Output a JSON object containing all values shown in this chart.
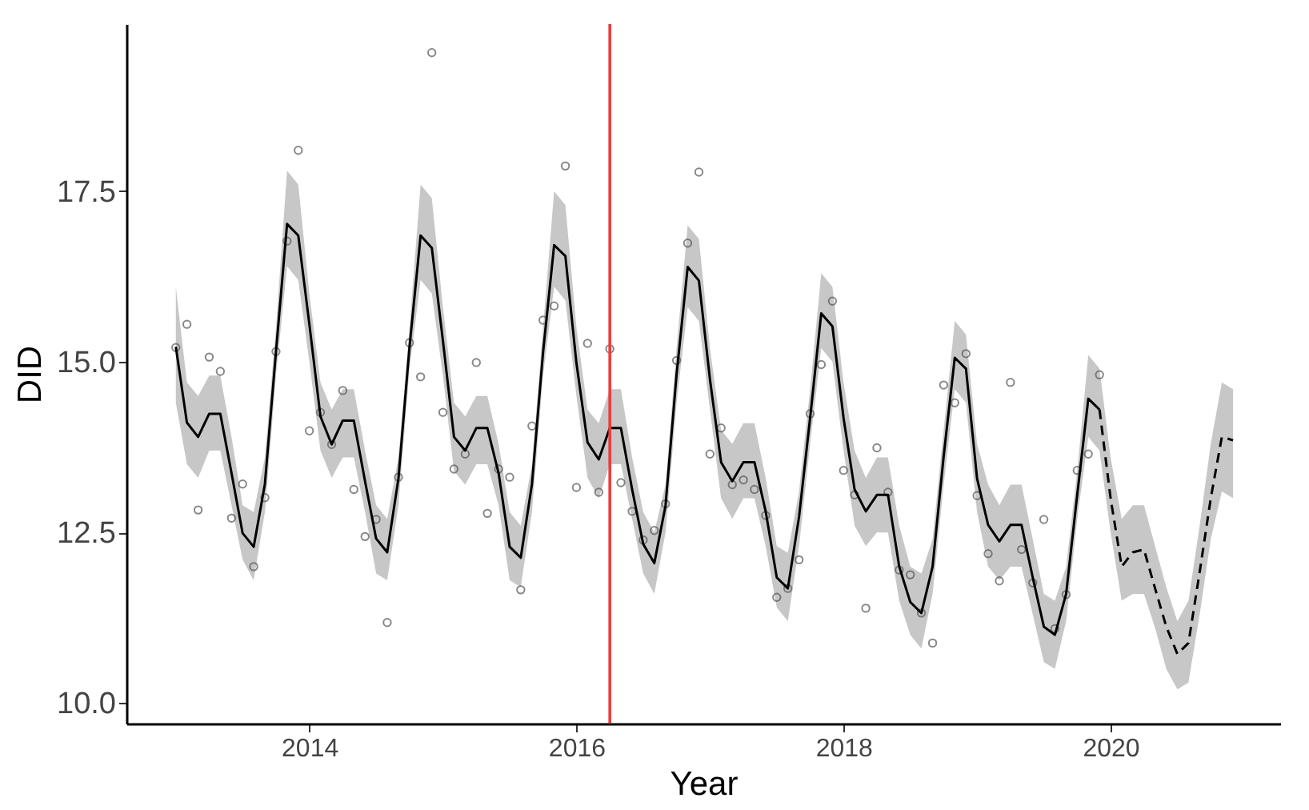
{
  "chart_data": {
    "type": "line",
    "xlabel": "Year",
    "ylabel": "DID",
    "xlim": [
      2012.63,
      2021.27
    ],
    "xticks": [
      2014,
      2016,
      2018,
      2020
    ],
    "ylim": [
      9.7,
      19.95
    ],
    "yticks": [
      {
        "value": 10,
        "label": "10.0"
      },
      {
        "value": 12.5,
        "label": "12.5"
      },
      {
        "value": 15,
        "label": "15.0"
      },
      {
        "value": 17.5,
        "label": "17.5"
      }
    ],
    "grid": false,
    "x": [
      2013,
      2013.083,
      2013.167,
      2013.25,
      2013.333,
      2013.417,
      2013.5,
      2013.583,
      2013.667,
      2013.75,
      2013.833,
      2013.917,
      2014,
      2014.083,
      2014.167,
      2014.25,
      2014.333,
      2014.417,
      2014.5,
      2014.583,
      2014.667,
      2014.75,
      2014.833,
      2014.917,
      2015,
      2015.083,
      2015.167,
      2015.25,
      2015.333,
      2015.417,
      2015.5,
      2015.583,
      2015.667,
      2015.75,
      2015.833,
      2015.917,
      2016,
      2016.083,
      2016.167,
      2016.25,
      2016.333,
      2016.417,
      2016.5,
      2016.583,
      2016.667,
      2016.75,
      2016.833,
      2016.917,
      2017,
      2017.083,
      2017.167,
      2017.25,
      2017.333,
      2017.417,
      2017.5,
      2017.583,
      2017.667,
      2017.75,
      2017.833,
      2017.917,
      2018,
      2018.083,
      2018.167,
      2018.25,
      2018.333,
      2018.417,
      2018.5,
      2018.583,
      2018.667,
      2018.75,
      2018.833,
      2018.917,
      2019,
      2019.083,
      2019.167,
      2019.25,
      2019.333,
      2019.417,
      2019.5,
      2019.583,
      2019.667,
      2019.75,
      2019.833,
      2019.917
    ],
    "series": [
      {
        "type": "scatter",
        "color": "#555555",
        "marker": "circle",
        "values": [
          15.21,
          15.55,
          12.83,
          15.07,
          14.86,
          12.71,
          13.21,
          12.0,
          13.01,
          15.15,
          16.77,
          18.1,
          13.99,
          14.26,
          13.79,
          14.58,
          13.13,
          12.44,
          12.69,
          11.18,
          13.31,
          15.28,
          14.78,
          19.53,
          14.26,
          13.43,
          13.65,
          14.99,
          12.78,
          13.43,
          13.31,
          11.66,
          14.06,
          15.61,
          15.82,
          17.87,
          13.16,
          15.27,
          13.09,
          15.19,
          13.23,
          12.81,
          12.39,
          12.53,
          12.92,
          15.02,
          16.74,
          17.78,
          13.65,
          14.03,
          13.2,
          13.27,
          13.13,
          12.75,
          11.55,
          11.68,
          12.1,
          14.24,
          14.96,
          15.89,
          13.41,
          13.05,
          11.39,
          13.74,
          13.09,
          11.95,
          11.88,
          11.32,
          10.88,
          14.66,
          14.4,
          15.12,
          13.04,
          12.19,
          11.79,
          14.7,
          12.25,
          11.76,
          12.69,
          11.09,
          11.59,
          13.41,
          13.65,
          14.81
        ]
      },
      {
        "color": "#000000",
        "line_style": "solid",
        "marker": "none",
        "values": [
          15.22,
          14.11,
          13.9,
          14.24,
          14.24,
          13.37,
          12.49,
          12.29,
          13.21,
          15.15,
          17.02,
          16.85,
          15.55,
          14.2,
          13.79,
          14.14,
          14.14,
          13.25,
          12.41,
          12.21,
          13.29,
          15.22,
          16.85,
          16.67,
          15.31,
          13.9,
          13.7,
          14.03,
          14.03,
          13.37,
          12.29,
          12.13,
          13.21,
          15.14,
          16.71,
          16.55,
          14.98,
          13.82,
          13.57,
          14.03,
          14.03,
          13.13,
          12.33,
          12.05,
          12.89,
          14.82,
          16.39,
          16.19,
          14.74,
          13.53,
          13.25,
          13.53,
          13.53,
          12.81,
          11.84,
          11.68,
          12.73,
          14.18,
          15.71,
          15.52,
          14.18,
          13.13,
          12.81,
          13.05,
          13.05,
          12.0,
          11.48,
          11.32,
          12.0,
          13.62,
          15.06,
          14.9,
          13.29,
          12.61,
          12.37,
          12.61,
          12.61,
          11.84,
          11.12,
          11.0,
          11.6,
          13.05,
          14.46,
          14.3
        ],
        "upper": [
          16.1,
          14.7,
          14.5,
          14.8,
          14.8,
          13.9,
          12.9,
          12.8,
          13.6,
          15.5,
          17.8,
          17.6,
          16.0,
          14.7,
          14.3,
          14.6,
          14.6,
          13.7,
          12.9,
          12.7,
          13.6,
          15.5,
          17.6,
          17.4,
          15.8,
          14.4,
          14.2,
          14.5,
          14.5,
          13.8,
          12.8,
          12.6,
          13.5,
          15.5,
          17.5,
          17.3,
          15.5,
          14.3,
          14.1,
          14.6,
          14.6,
          13.6,
          12.8,
          12.5,
          13.2,
          15.2,
          17.0,
          16.8,
          15.2,
          14.0,
          13.8,
          14.1,
          14.1,
          13.3,
          12.3,
          12.2,
          13.1,
          14.6,
          16.3,
          16.1,
          14.7,
          13.7,
          13.3,
          13.6,
          13.6,
          12.6,
          12.0,
          11.9,
          12.4,
          14.0,
          15.6,
          15.4,
          13.8,
          13.2,
          12.9,
          13.2,
          13.2,
          12.4,
          11.6,
          11.5,
          12.0,
          13.4,
          15.1,
          14.9
        ],
        "lower": [
          14.4,
          13.5,
          13.3,
          13.7,
          13.7,
          12.9,
          12.1,
          11.8,
          12.8,
          14.8,
          16.4,
          16.2,
          15.0,
          13.7,
          13.3,
          13.6,
          13.6,
          12.8,
          11.9,
          11.8,
          12.9,
          14.9,
          16.2,
          16.0,
          14.8,
          13.4,
          13.2,
          13.5,
          13.5,
          12.9,
          11.8,
          11.7,
          12.8,
          14.8,
          16.1,
          15.9,
          14.5,
          13.3,
          13.0,
          13.5,
          13.5,
          12.7,
          11.9,
          11.6,
          12.5,
          14.4,
          15.8,
          15.6,
          14.3,
          13.0,
          12.7,
          13.0,
          13.0,
          12.3,
          11.4,
          11.2,
          12.3,
          13.8,
          15.2,
          15.0,
          13.7,
          12.6,
          12.3,
          12.5,
          12.5,
          11.5,
          11.0,
          10.8,
          11.6,
          13.2,
          14.6,
          14.4,
          12.8,
          12.0,
          11.8,
          12.0,
          12.0,
          11.3,
          10.6,
          10.5,
          11.2,
          12.7,
          13.9,
          13.7
        ]
      },
      {
        "color": "#000000",
        "line_style": "dashed",
        "marker": "none",
        "x": [
          2019.917,
          2020,
          2020.083,
          2020.167,
          2020.25,
          2020.333,
          2020.417,
          2020.5,
          2020.583,
          2020.667,
          2020.75,
          2020.833,
          2020.917
        ],
        "values": [
          14.3,
          13.0,
          12.0,
          12.21,
          12.25,
          11.68,
          11.12,
          10.72,
          10.88,
          11.92,
          13.0,
          13.9,
          13.85
        ],
        "upper": [
          14.9,
          13.6,
          12.7,
          12.9,
          12.9,
          12.3,
          11.7,
          11.2,
          11.5,
          12.6,
          13.8,
          14.7,
          14.6
        ],
        "lower": [
          13.7,
          12.5,
          11.5,
          11.6,
          11.6,
          11.1,
          10.5,
          10.2,
          10.3,
          11.3,
          12.4,
          13.1,
          13.0
        ]
      }
    ],
    "ref_lines": [
      {
        "axis": "x",
        "value": 2016.25,
        "color": "#ee3b3b"
      }
    ]
  }
}
